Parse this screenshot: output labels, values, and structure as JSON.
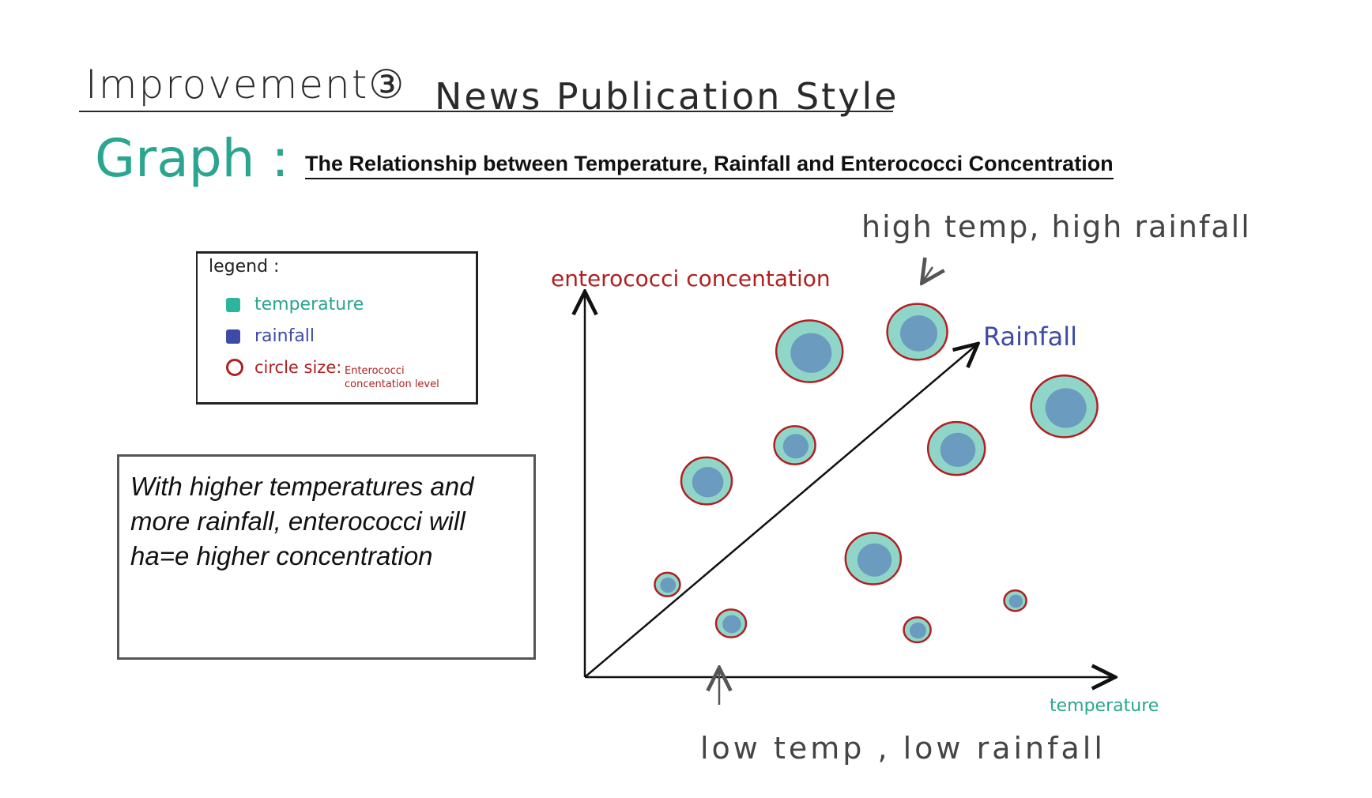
{
  "heading": {
    "title": "Improvement③",
    "subtitle": "News Publication Style"
  },
  "graph_label": "Graph :",
  "chart_title": "The Relationship between Temperature, Rainfall and Enterococci Concentration",
  "legend": {
    "title": "legend :",
    "items": [
      {
        "label": "temperature",
        "color": "#2bb59a"
      },
      {
        "label": "rainfall",
        "color": "#3d4aa8"
      }
    ],
    "circle_label": "circle size:",
    "circle_note": "Enterococci concentation level",
    "circle_color": "#b02020"
  },
  "note": "With higher temperatures and more rainfall, enterococci will ha=e higher concentration",
  "annotations": {
    "top": "high temp, high rainfall",
    "bottom": "low temp , low rainfall",
    "diagonal": "Rainfall"
  },
  "colors": {
    "outer_fill": "#8fd6c8",
    "inner_fill": "#6b9cc0",
    "ring": "#b02020",
    "temp_text": "#2aa58f",
    "rain_text": "#3d4aa8",
    "conc_text": "#b02020"
  },
  "chart_data": {
    "type": "scatter",
    "title": "The Relationship between Temperature, Rainfall and Enterococci Concentration",
    "xlabel": "temperature",
    "ylabel": "enterococci concentation",
    "xlim": [
      0,
      10
    ],
    "ylim": [
      0,
      10
    ],
    "grid": false,
    "legend": "top-left",
    "points": [
      {
        "x": 1.2,
        "y": 2.2,
        "size": 1
      },
      {
        "x": 2.5,
        "y": 1.0,
        "size": 1.3
      },
      {
        "x": 2.0,
        "y": 5.4,
        "size": 2.6
      },
      {
        "x": 3.8,
        "y": 6.5,
        "size": 2.0
      },
      {
        "x": 4.1,
        "y": 9.4,
        "size": 3.6
      },
      {
        "x": 5.4,
        "y": 3.0,
        "size": 2.9
      },
      {
        "x": 6.3,
        "y": 10.0,
        "size": 3.2
      },
      {
        "x": 6.3,
        "y": 0.8,
        "size": 1.1
      },
      {
        "x": 7.1,
        "y": 6.4,
        "size": 3.0
      },
      {
        "x": 8.3,
        "y": 1.7,
        "size": 0.8
      },
      {
        "x": 9.3,
        "y": 7.7,
        "size": 3.6
      }
    ]
  }
}
